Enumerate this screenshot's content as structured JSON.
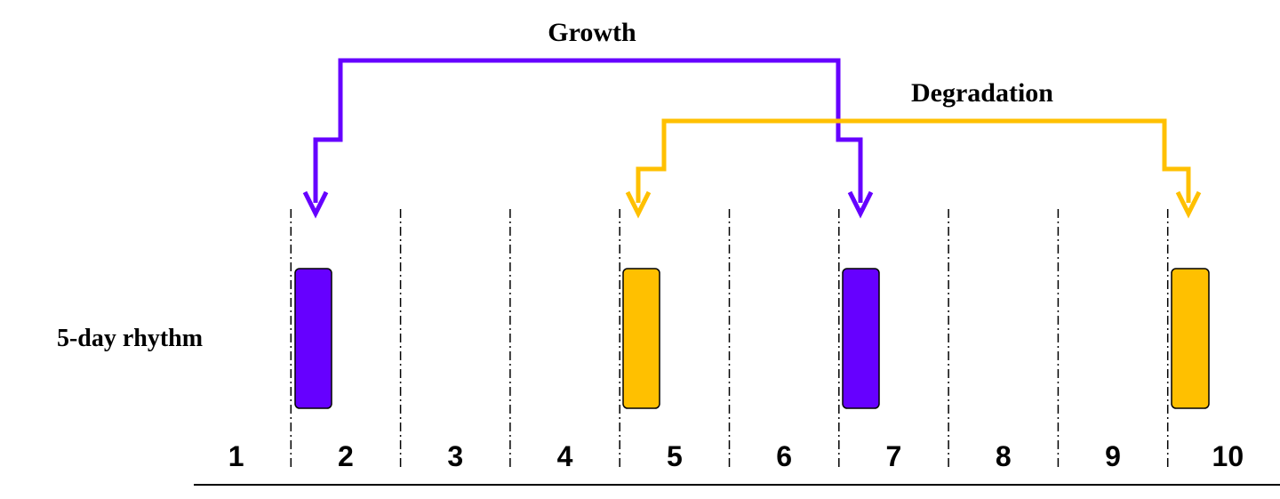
{
  "labels": {
    "growth": "Growth",
    "degradation": "Degradation"
  },
  "row_label": "5-day rhythm",
  "days": [
    "1",
    "2",
    "3",
    "4",
    "5",
    "6",
    "7",
    "8",
    "9",
    "10"
  ]
}
